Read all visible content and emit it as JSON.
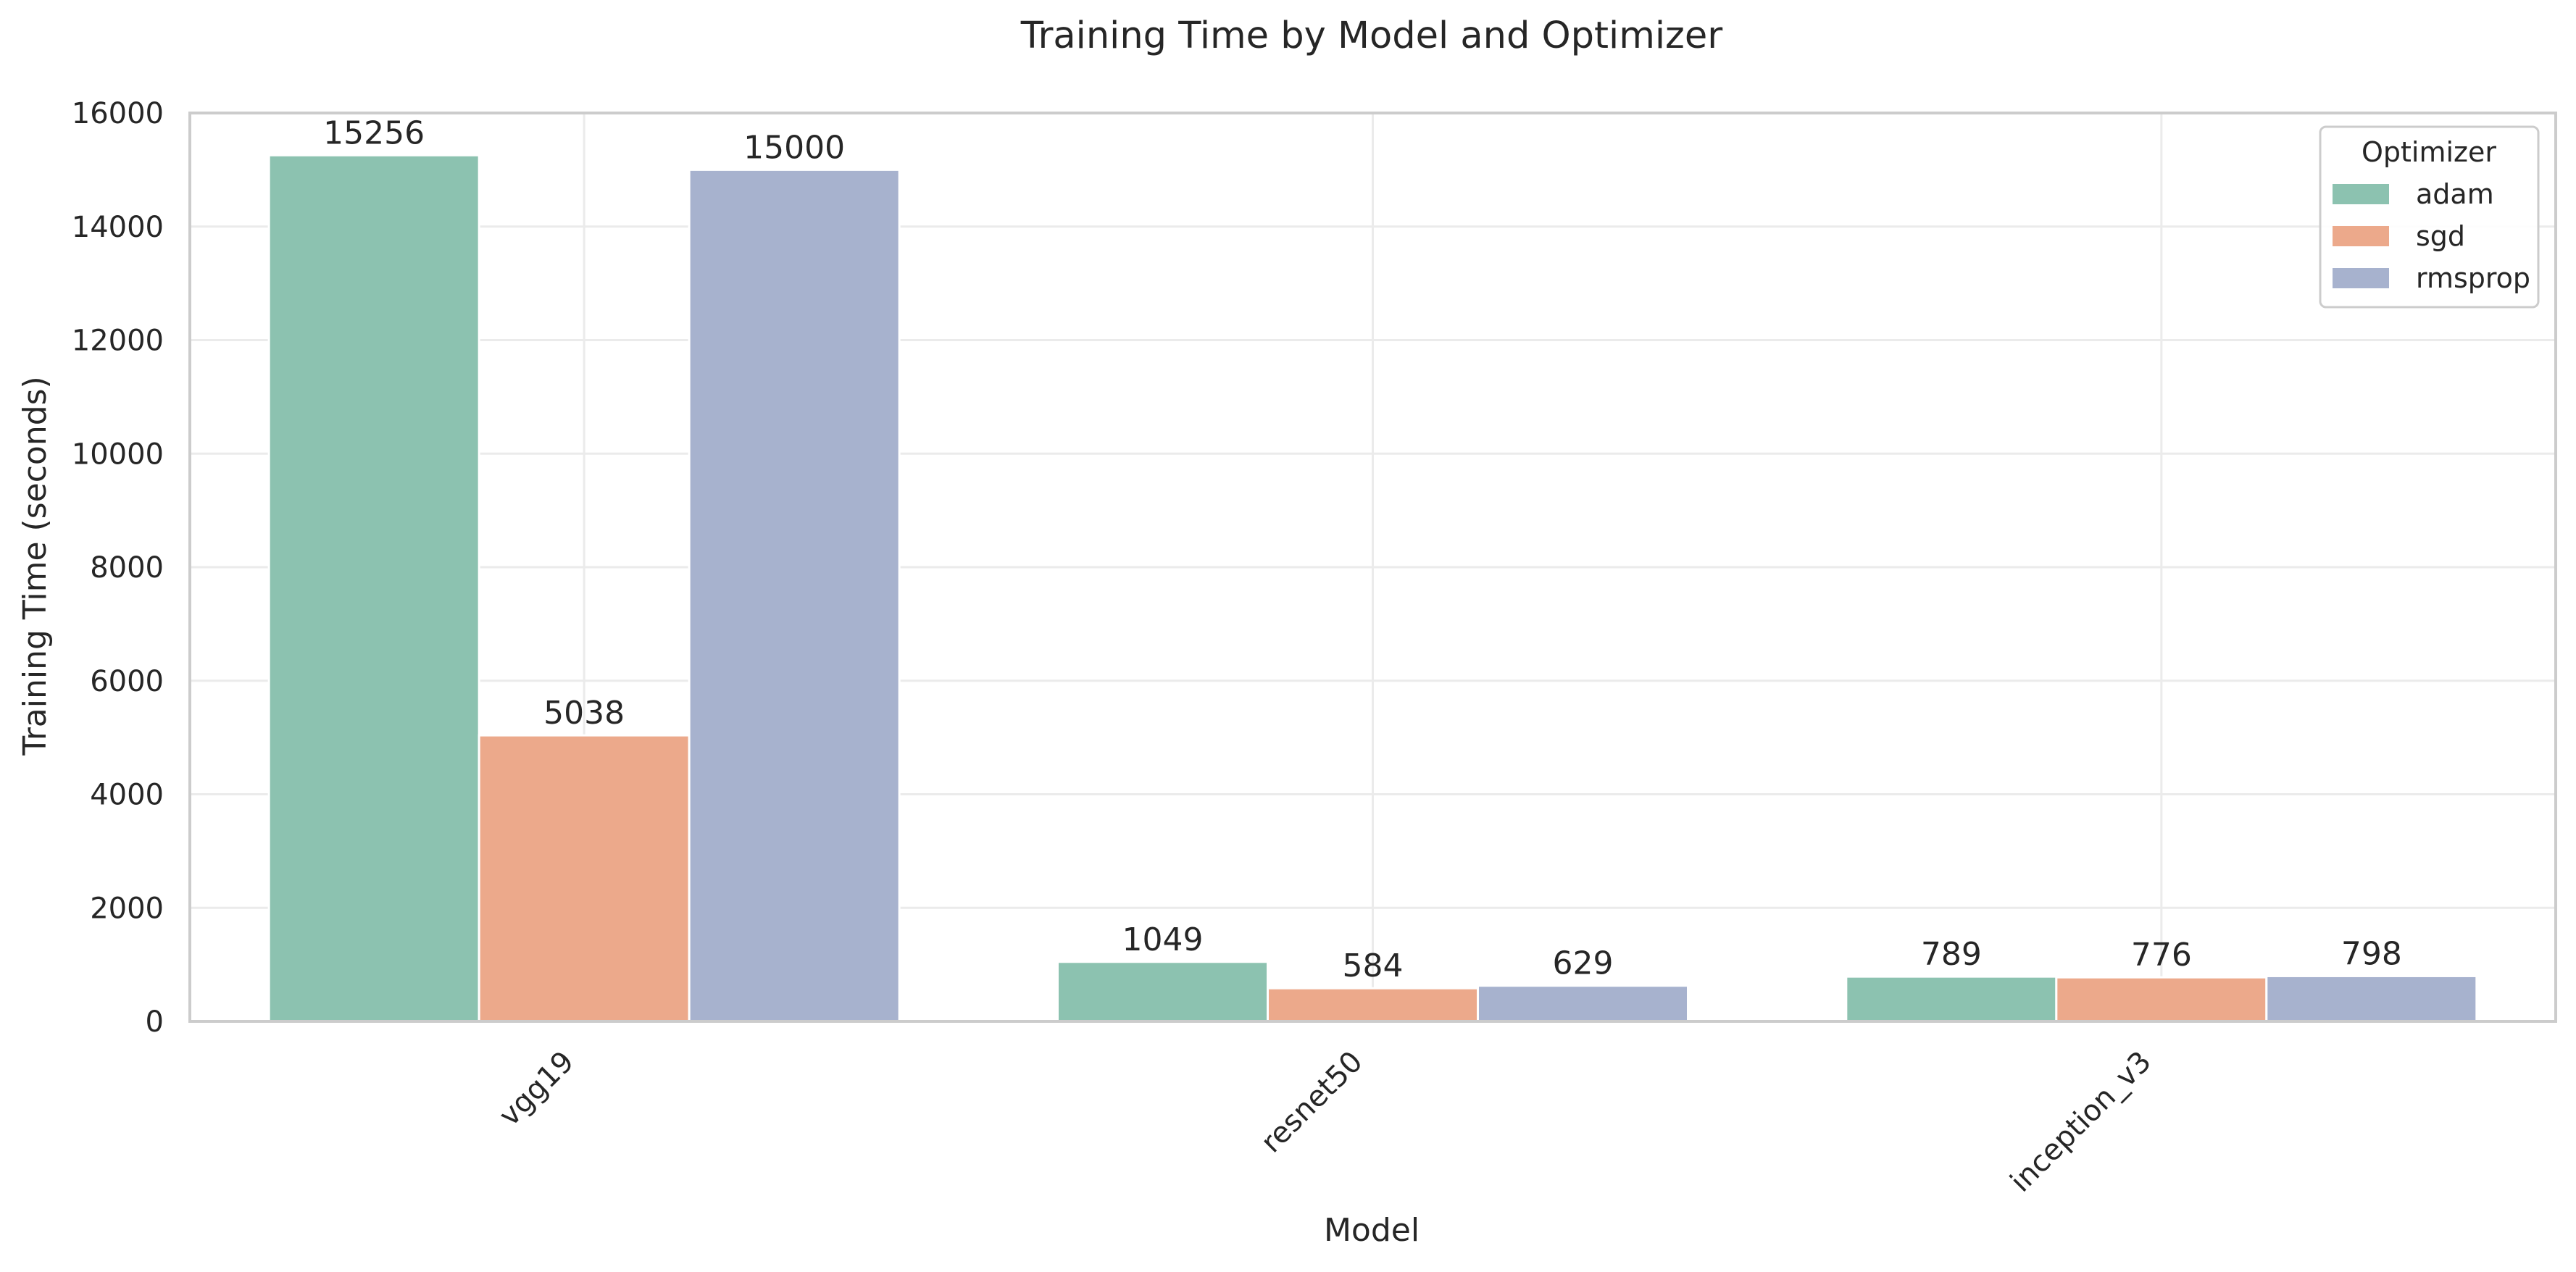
{
  "chart_data": {
    "type": "bar",
    "title": "Training Time by Model and Optimizer",
    "xlabel": "Model",
    "ylabel": "Training Time (seconds)",
    "categories": [
      "vgg19",
      "resnet50",
      "inception_v3"
    ],
    "series": [
      {
        "name": "adam",
        "values": [
          15256,
          1049,
          789
        ],
        "color": "#8cc2b0"
      },
      {
        "name": "sgd",
        "values": [
          5038,
          584,
          776
        ],
        "color": "#eca98b"
      },
      {
        "name": "rmsprop",
        "values": [
          15000,
          629,
          798
        ],
        "color": "#a7b2ce"
      }
    ],
    "ylim": [
      0,
      16000
    ],
    "yticks": [
      0,
      2000,
      4000,
      6000,
      8000,
      10000,
      12000,
      14000,
      16000
    ],
    "grid": true,
    "legend": {
      "title": "Optimizer",
      "position": "top-right"
    },
    "data_labels": true
  }
}
